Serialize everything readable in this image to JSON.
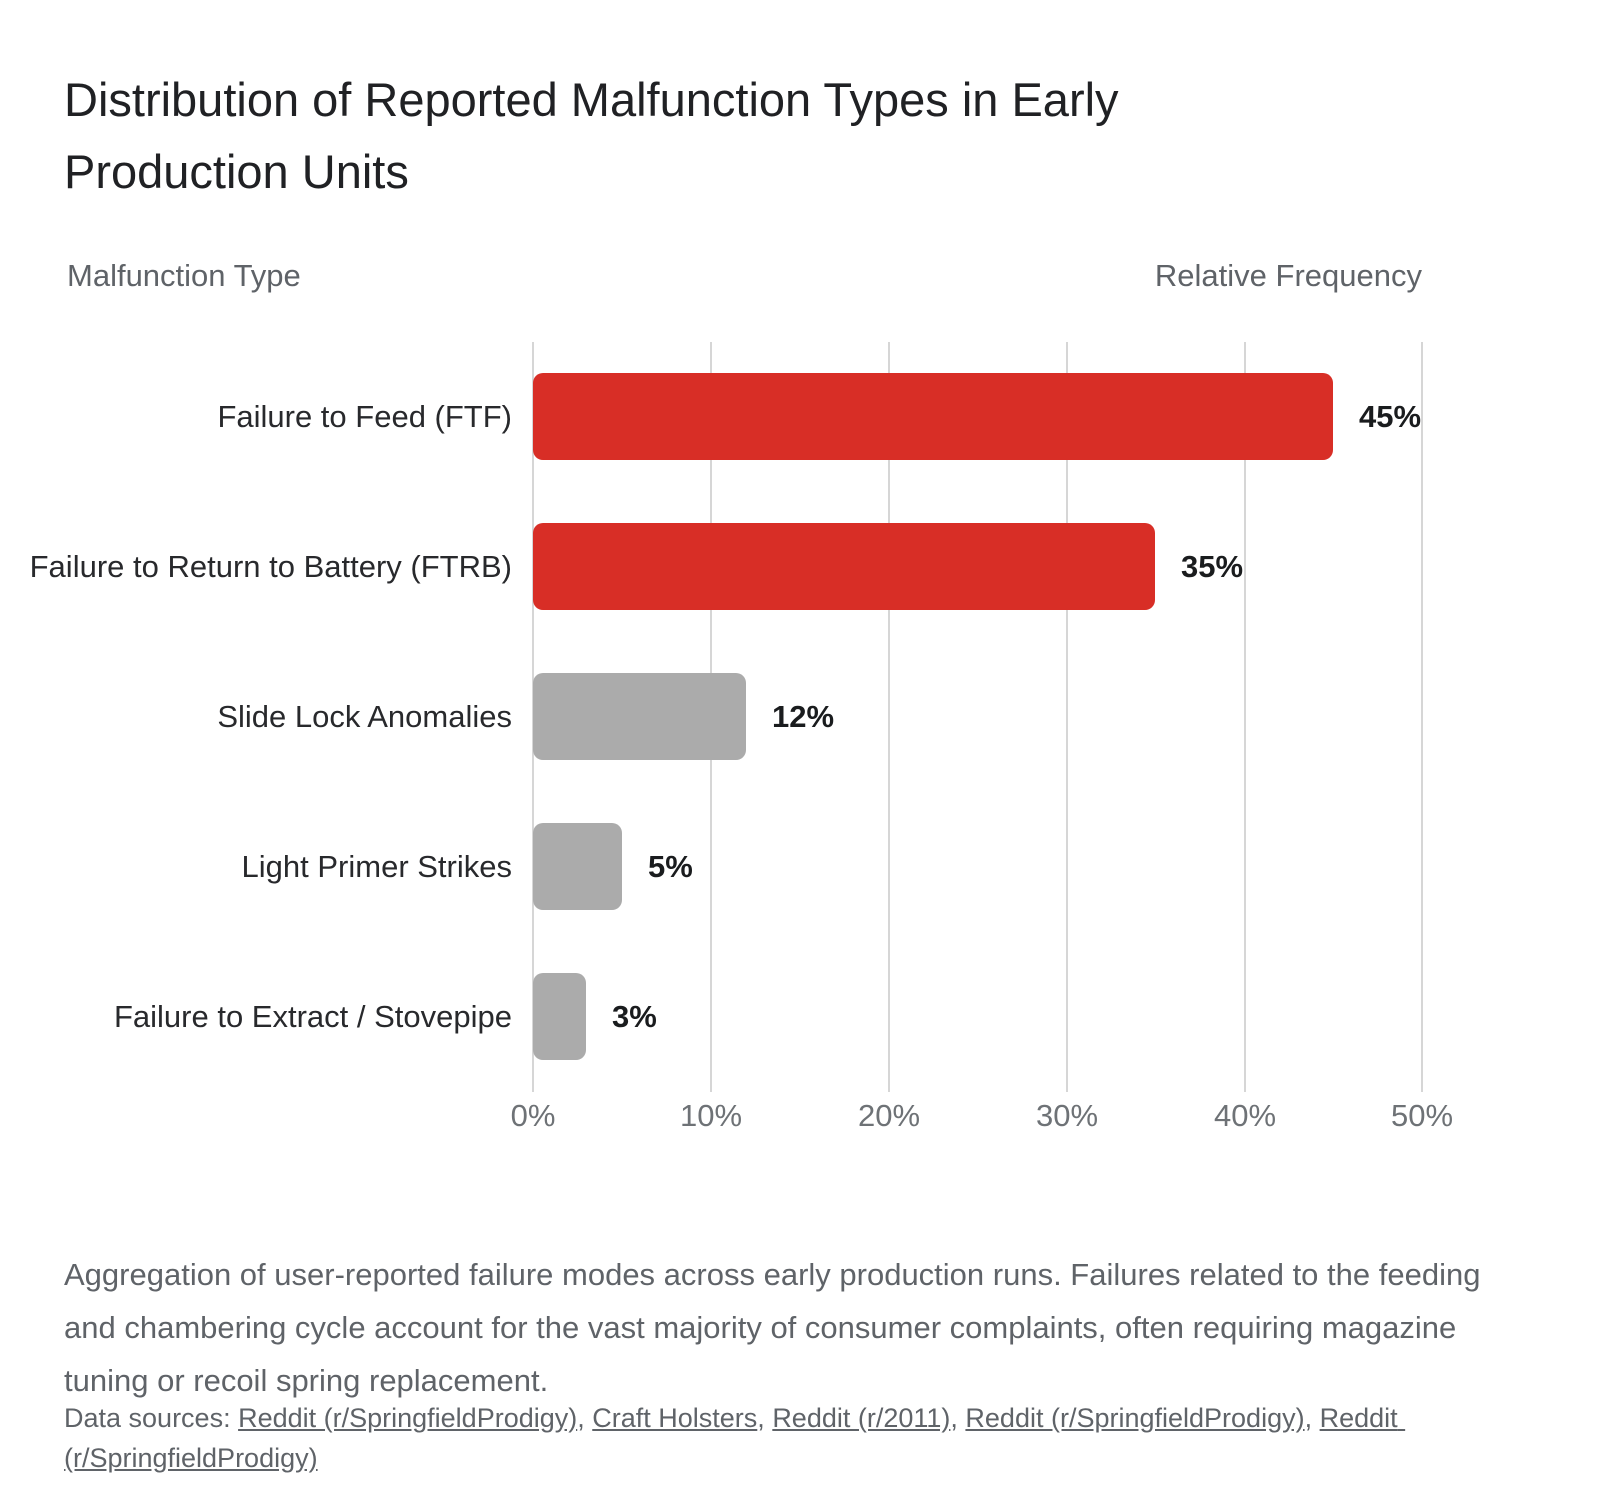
{
  "title": {
    "line1": "Distribution of Reported Malfunction Types in Early",
    "line2": "Production Units"
  },
  "columns": {
    "left": "Malfunction Type",
    "right": "Relative Frequency"
  },
  "chart_data": {
    "type": "bar",
    "orientation": "horizontal",
    "title": "Distribution of Reported Malfunction Types in Early Production Units",
    "categories": [
      "Failure to Feed (FTF)",
      "Failure to Return to Battery (FTRB)",
      "Slide Lock Anomalies",
      "Light Primer Strikes",
      "Failure to Extract / Stovepipe"
    ],
    "values": [
      45,
      35,
      12,
      5,
      3
    ],
    "value_labels": [
      "45%",
      "35%",
      "12%",
      "5%",
      "3%"
    ],
    "bar_colors": [
      "#d82e26",
      "#d82e26",
      "#ababab",
      "#ababab",
      "#ababab"
    ],
    "xticks": [
      "0%",
      "10%",
      "20%",
      "30%",
      "40%",
      "50%"
    ],
    "xlim": [
      0,
      50
    ],
    "xlabel": "Relative Frequency",
    "ylabel": "Malfunction Type",
    "grid": "vertical",
    "legend": "none"
  },
  "colors": {
    "accent_red": "#d82e26",
    "neutral_gray": "#ababab",
    "gridline": "#d6d6d6",
    "title_text": "#202124",
    "label_text": "#28292c",
    "muted_text": "#5f6368",
    "tick_text": "#6e7276",
    "background": "#ffffff"
  },
  "caption": "Aggregation of user-reported failure modes across early production runs. Failures related to the feeding and chambering cycle account for the vast majority of consumer complaints, often requiring magazine tuning or recoil spring replacement.",
  "sources": {
    "prefix": "Data sources: ",
    "separator": ", ",
    "links": [
      "Reddit (r/SpringfieldProdigy)",
      "Craft Holsters",
      "Reddit (r/2011)",
      "Reddit (r/SpringfieldProdigy)",
      "Reddit (r/SpringfieldProdigy)"
    ]
  }
}
